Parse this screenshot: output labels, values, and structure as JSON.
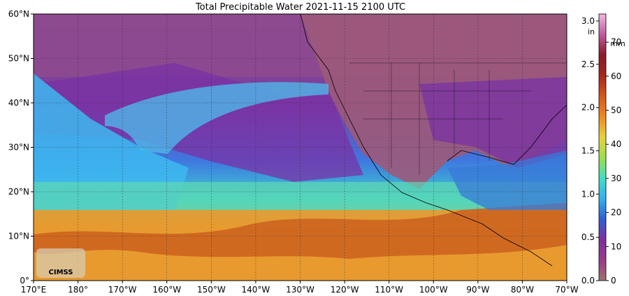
{
  "title": "Total Precipitable Water  2021-11-15 2100 UTC",
  "map": {
    "lat_labels": [
      "60°N",
      "50°N",
      "40°N",
      "30°N",
      "20°N",
      "10°N",
      "0°"
    ],
    "lon_labels": [
      "170°E",
      "180°",
      "170°W",
      "160°W",
      "150°W",
      "140°W",
      "130°W",
      "120°W",
      "110°W",
      "100°W",
      "90°W",
      "80°W",
      "70°W"
    ],
    "logo_text": "CIMSS"
  },
  "colorbar": {
    "unit_in": "in",
    "unit_mm": "mm",
    "in_ticks": [
      "3.0",
      "2.5",
      "2.0",
      "1.5",
      "1.0",
      "0.5",
      "0.0"
    ],
    "mm_ticks": [
      "70",
      "60",
      "50",
      "40",
      "30",
      "20",
      "10",
      "0"
    ],
    "gradient_bottom_to_top": [
      "#a0716b",
      "#9a3a8c",
      "#7f2ea0",
      "#2f5fd6",
      "#2fb3f0",
      "#3fe0c0",
      "#9de04a",
      "#e8d23a",
      "#ee8a1e",
      "#d9541a",
      "#a8251a",
      "#8a1a2a",
      "#c05aa0",
      "#f0b8e0"
    ]
  }
}
